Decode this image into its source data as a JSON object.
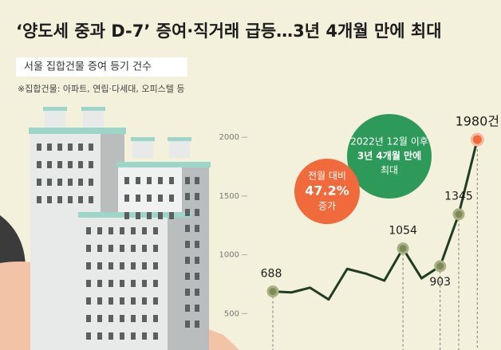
{
  "chart_data": {
    "type": "line",
    "title": "‘양도세 중과 D-7’ 증여·직거래 급등…3년 4개월 만에 최대",
    "subtitle": "서울 집합건물 증여 등기 건수",
    "note": "※집합건물: 아파트, 연립·다세대, 오피스텔 등",
    "categories": [
      null,
      null,
      null,
      null,
      null,
      null,
      null,
      null,
      null,
      null,
      null,
      null
    ],
    "series": [
      {
        "name": null,
        "color": "#1f3d22",
        "values": [
          688,
          680,
          720,
          620,
          880,
          840,
          780,
          1054,
          800,
          903,
          1345,
          1980
        ],
        "value_labels": [
          "688",
          null,
          null,
          null,
          null,
          null,
          null,
          "1054",
          null,
          "903",
          "1345",
          "1980건"
        ]
      }
    ],
    "ylim": [
      190,
      2150
    ],
    "yticks": [
      500,
      1000,
      1500,
      2000
    ],
    "annotations": [
      {
        "lines": [
          "2022년 12월 이후",
          "3년 4개월 만에",
          "최대"
        ],
        "color": "#2e9a5a"
      },
      {
        "lines": [
          "전월 대비",
          "47.2%",
          "증가"
        ],
        "color": "#f06a3c"
      }
    ]
  }
}
